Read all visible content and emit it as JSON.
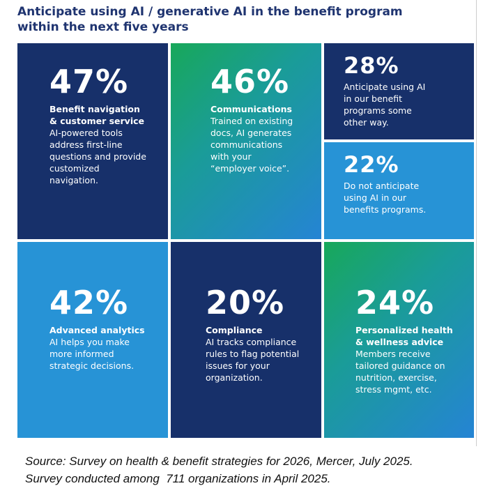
{
  "header": {
    "title": "Anticipate using AI / generative AI in the benefit program within the next five years"
  },
  "tiles": [
    {
      "percent": "47%",
      "heading": "Benefit navigation & customer service",
      "text": "AI-powered tools address first-line questions and provide customized navigation."
    },
    {
      "percent": "46%",
      "heading": "Communications",
      "text": "Trained on existing docs, AI generates communications with your “employer voice”."
    },
    {
      "percent": "28%",
      "text": "Anticipate using AI in our benefit programs some other way."
    },
    {
      "percent": "22%",
      "text": "Do not anticipate using AI in our benefits programs."
    },
    {
      "percent": "42%",
      "heading": "Advanced analytics",
      "text": "AI helps you make more informed strategic decisions."
    },
    {
      "percent": "20%",
      "heading": "Compliance",
      "text": "AI tracks compliance rules to flag potential issues for your organization."
    },
    {
      "percent": "24%",
      "heading": "Personalized health & wellness advice",
      "text": "Members receive tailored guidance on nutrition, exercise, stress mgmt, etc."
    }
  ],
  "footer": {
    "lines": [
      "Source: Survey on health & benefit strategies for 2026, Mercer, July 2025.",
      "Survey conducted among  711 organizations in April 2025."
    ]
  }
}
